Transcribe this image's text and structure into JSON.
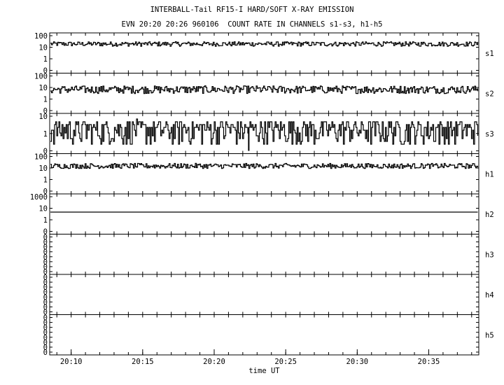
{
  "chart_data": {
    "type": "line",
    "title": "INTERBALL-Tail RF15-I HARD/SOFT X-RAY EMISSION",
    "subtitle": "EVN 20:20 20:26 960106  COUNT RATE IN CHANNELS s1-s3, h1-h5",
    "xlabel": "time UT",
    "x_range": [
      "20:08:30",
      "20:38:30"
    ],
    "x_ticks": [
      "20:10",
      "20:15",
      "20:20",
      "20:25",
      "20:30",
      "20:35"
    ],
    "grid": false,
    "panels": [
      {
        "name": "s1",
        "y_ticks": [
          "100",
          "10",
          "1",
          "0"
        ],
        "level": 20,
        "min": 12,
        "max": 30,
        "spikes": []
      },
      {
        "name": "s2",
        "y_ticks": [
          "100",
          "10",
          "1",
          "0"
        ],
        "level": 7,
        "min": 3,
        "max": 14,
        "spikes": []
      },
      {
        "name": "s3",
        "y_ticks": [
          "10",
          "1",
          "0"
        ],
        "level": 2,
        "min": 0.2,
        "max": 6,
        "spikes": [
          {
            "x": "20:22:25",
            "value": 0
          }
        ]
      },
      {
        "name": "h1",
        "y_ticks": [
          "100",
          "10",
          "1",
          "0"
        ],
        "level": 15,
        "min": 9,
        "max": 25,
        "spikes": []
      },
      {
        "name": "h2",
        "y_ticks": [
          "1000",
          "10",
          "1",
          "0"
        ],
        "level": 10,
        "min": 10,
        "max": 10,
        "spikes": []
      },
      {
        "name": "h3",
        "y_ticks": [
          "0",
          "0",
          "0",
          "0",
          "0",
          "0",
          "0",
          "0"
        ],
        "level": 0,
        "min": 0,
        "max": 0,
        "spikes": []
      },
      {
        "name": "h4",
        "y_ticks": [
          "0",
          "0",
          "0",
          "0",
          "0",
          "0",
          "0",
          "0"
        ],
        "level": 0,
        "min": 0,
        "max": 0,
        "spikes": []
      },
      {
        "name": "h5",
        "y_ticks": [
          "0",
          "0",
          "0",
          "0",
          "0",
          "0",
          "0",
          "0"
        ],
        "level": 0,
        "min": 0,
        "max": 0,
        "spikes": []
      }
    ]
  }
}
